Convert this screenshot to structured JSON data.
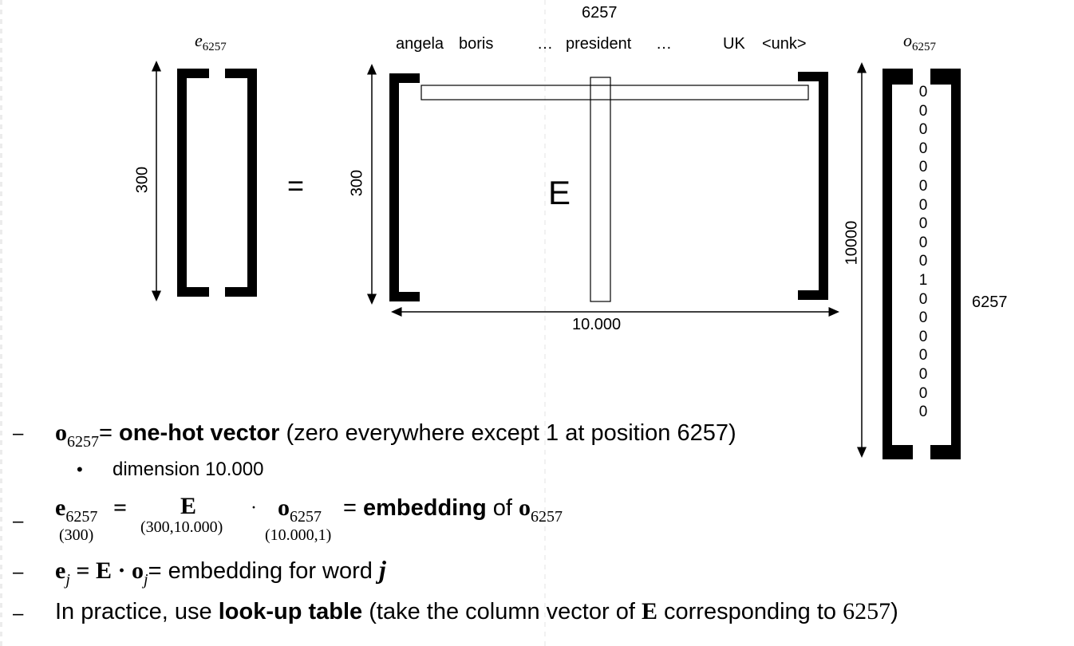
{
  "diagram": {
    "e_label_base": "e",
    "e_label_sub": "6257",
    "o_label_base": "o",
    "o_label_sub": "6257",
    "column_index_label": "6257",
    "vocab_words": [
      "angela",
      "boris",
      "…",
      "president",
      "…",
      "UK",
      "<unk>"
    ],
    "left_dim_label": "300",
    "equals": "=",
    "matrix_dim_label": "300",
    "matrix_label": "E",
    "width_label": "10.000",
    "vector_height_label": "10000",
    "vector_index_label": "6257",
    "one_hot_values": [
      "0",
      "0",
      "0",
      "0",
      "0",
      "0",
      "0",
      "0",
      "0",
      "0",
      "1",
      "0",
      "0",
      "0",
      "0",
      "0",
      "0",
      "0"
    ]
  },
  "bullets": {
    "b1": {
      "dash": "–",
      "sym": "o",
      "sub": "6257",
      "eq": "= ",
      "bold": "one-hot vector",
      "rest": " (zero everywhere except 1 at position 6257)"
    },
    "b1_sub": {
      "bullet": "•",
      "text": "dimension 10.000"
    },
    "b2": {
      "dash": "–",
      "e_sym": "e",
      "e_sub": "6257",
      "e_dim": "(300)",
      "eq": "=",
      "E_sym": "E",
      "E_dim": "(300,10.000)",
      "dot": "·",
      "o_sym": "o",
      "o_sub": "6257",
      "o_dim": "(10.000,1)",
      "eq2": " = ",
      "bold": "embedding",
      "of": " of ",
      "o2_sym": "o",
      "o2_sub": "6257"
    },
    "b3": {
      "dash": "–",
      "e_sym": "e",
      "e_sub": "j",
      "eq": " = ",
      "E_sym": "E",
      "dot": " · ",
      "o_sym": "o",
      "o_sub": "j",
      "rest": "= embedding for word ",
      "j": "j"
    },
    "b4": {
      "dash": "–",
      "pre": "In practice, use ",
      "bold": "look-up table",
      "mid": " (take the column vector of ",
      "E_sym": "E",
      "post": " corresponding to ",
      "num": "6257",
      "close": ")"
    }
  }
}
